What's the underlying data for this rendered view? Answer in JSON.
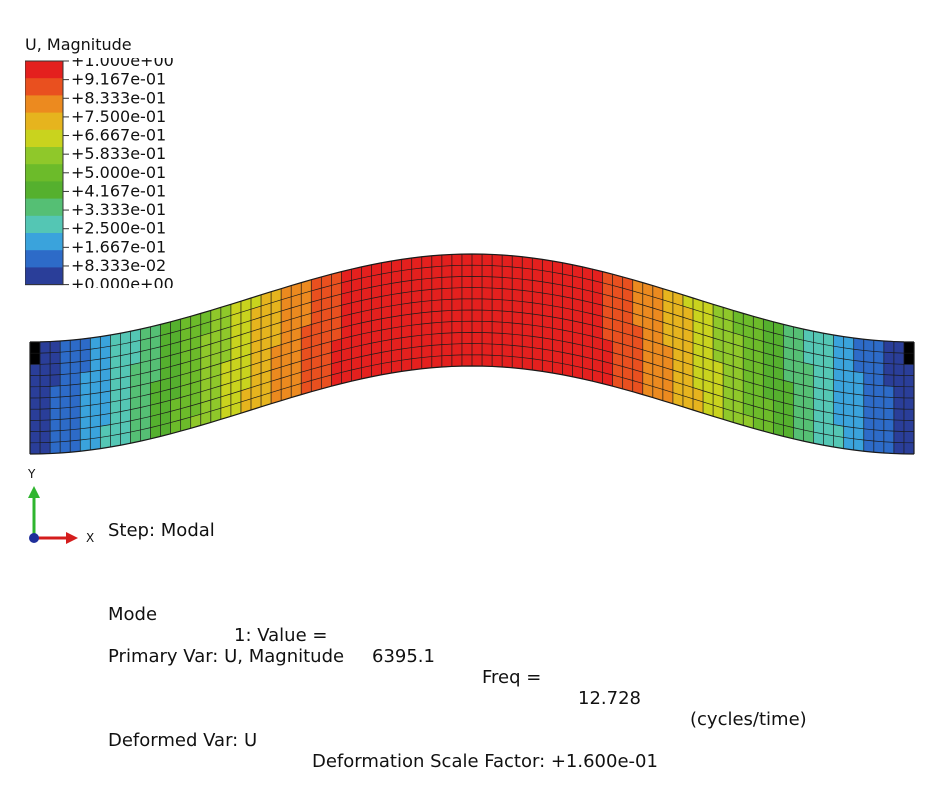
{
  "legend": {
    "title": "U, Magnitude",
    "labels": [
      "+1.000e+00",
      "+9.167e-01",
      "+8.333e-01",
      "+7.500e-01",
      "+6.667e-01",
      "+5.833e-01",
      "+5.000e-01",
      "+4.167e-01",
      "+3.333e-01",
      "+2.500e-01",
      "+1.667e-01",
      "+8.333e-02",
      "+0.000e+00"
    ],
    "colors": [
      "#e4201e",
      "#e9501f",
      "#ec8a1f",
      "#e6b41e",
      "#c9d31e",
      "#8fc82a",
      "#6cbb2a",
      "#55b02e",
      "#55bf74",
      "#54c6b4",
      "#3aa3dc",
      "#2d6bc8",
      "#2a3e99"
    ]
  },
  "info": {
    "step": "Step: Modal",
    "mode_label": "Mode",
    "mode_value": "1: Value =",
    "value": "6395.1",
    "freq_label": "Freq =",
    "freq": "12.728",
    "freq_unit": "(cycles/time)",
    "primary": "Primary Var: U, Magnitude",
    "deformed": "Deformed Var: U",
    "scale": "Deformation Scale Factor: +1.600e-01"
  },
  "triad": {
    "y_label": "Y",
    "x_label": "X",
    "y_color": "#2fb52f",
    "x_color": "#d41d1d",
    "z_color": "#1f2f9a"
  }
}
